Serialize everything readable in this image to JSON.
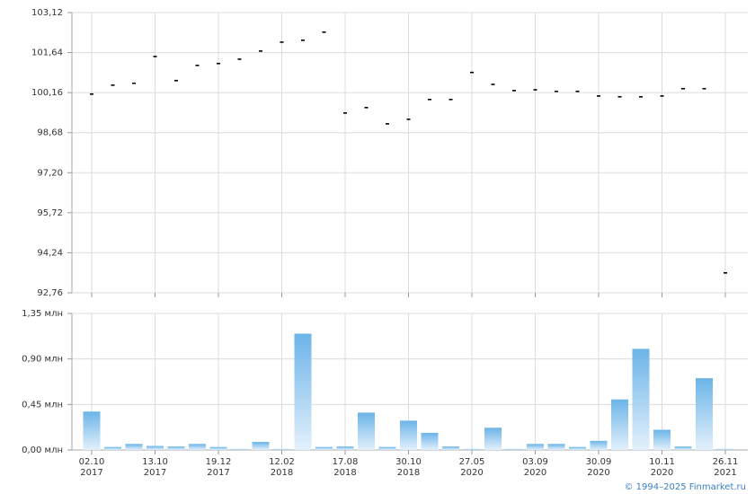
{
  "chart_data": [
    {
      "type": "scatter",
      "color": "#000000",
      "values": [
        100.1,
        100.43,
        100.5,
        101.49,
        100.6,
        101.16,
        101.23,
        101.39,
        101.69,
        102.02,
        102.09,
        102.39,
        99.4,
        99.6,
        99.0,
        99.17,
        99.9,
        99.9,
        100.9,
        100.46,
        100.23,
        100.26,
        100.2,
        100.2,
        100.03,
        100.0,
        100.0,
        100.03,
        100.3,
        100.3,
        93.49
      ],
      "ylim": [
        92.76,
        103.12
      ],
      "yticks": [
        {
          "value": 92.76,
          "label": "92,76"
        },
        {
          "value": 94.24,
          "label": "94,24"
        },
        {
          "value": 95.72,
          "label": "95,72"
        },
        {
          "value": 97.2,
          "label": "97,20"
        },
        {
          "value": 98.68,
          "label": "98,68"
        },
        {
          "value": 100.16,
          "label": "100,16"
        },
        {
          "value": 101.64,
          "label": "101,64"
        },
        {
          "value": 103.12,
          "label": "103,12"
        }
      ],
      "grid": true
    },
    {
      "type": "bar",
      "color": "#6bb4e8",
      "categories": [
        "02.10",
        null,
        null,
        "13.10",
        null,
        null,
        "19.12",
        null,
        null,
        "12.02",
        null,
        null,
        "17.08",
        null,
        null,
        "30.10",
        null,
        null,
        "27.05",
        null,
        null,
        "03.09",
        null,
        null,
        "30.09",
        null,
        null,
        "10.11",
        null,
        null,
        "26.11"
      ],
      "category_years": [
        "2017",
        null,
        null,
        "2017",
        null,
        null,
        "2017",
        null,
        null,
        "2018",
        null,
        null,
        "2018",
        null,
        null,
        "2018",
        null,
        null,
        "2020",
        null,
        null,
        "2020",
        null,
        null,
        "2020",
        null,
        null,
        "2020",
        null,
        null,
        "2021"
      ],
      "values": [
        0.38,
        0.03,
        0.06,
        0.04,
        0.035,
        0.06,
        0.03,
        0.01,
        0.08,
        0.01,
        1.15,
        0.03,
        0.035,
        0.37,
        0.03,
        0.29,
        0.17,
        0.035,
        0.01,
        0.22,
        0.01,
        0.06,
        0.06,
        0.03,
        0.09,
        0.5,
        1.0,
        0.2,
        0.035,
        0.71,
        0.01
      ],
      "ylim": [
        0,
        1.35
      ],
      "yticks": [
        {
          "value": 0,
          "label": "0,00 млн"
        },
        {
          "value": 0.45,
          "label": "0,45 млн"
        },
        {
          "value": 0.9,
          "label": "0,90 млн"
        },
        {
          "value": 1.35,
          "label": "1,35 млн"
        }
      ],
      "grid": true
    }
  ],
  "footer": {
    "text": "© 1994–2025 Finmarket.ru"
  }
}
